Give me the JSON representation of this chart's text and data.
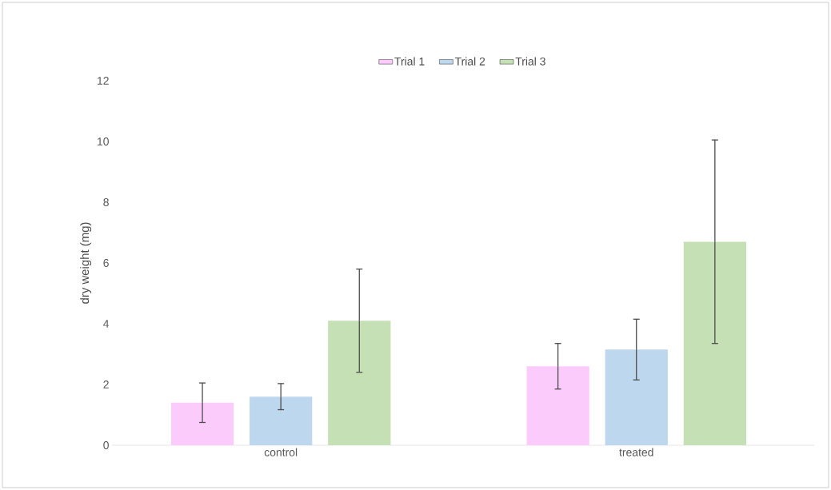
{
  "chart_data": {
    "type": "bar",
    "ylabel": "dry weight (mg)",
    "categories": [
      "control",
      "treated"
    ],
    "series": [
      {
        "name": "Trial 1",
        "color": "#fbccfb",
        "values": [
          1.4,
          2.6
        ],
        "errors": [
          0.65,
          0.75
        ]
      },
      {
        "name": "Trial 2",
        "color": "#bdd7ee",
        "values": [
          1.6,
          3.15
        ],
        "errors": [
          0.43,
          1.0
        ]
      },
      {
        "name": "Trial 3",
        "color": "#c5e0b4",
        "values": [
          4.1,
          6.7
        ],
        "errors": [
          1.7,
          3.35
        ]
      }
    ],
    "ylim": [
      0,
      12
    ],
    "yticks": [
      0,
      2,
      4,
      6,
      8,
      10,
      12
    ],
    "legend": "top"
  }
}
